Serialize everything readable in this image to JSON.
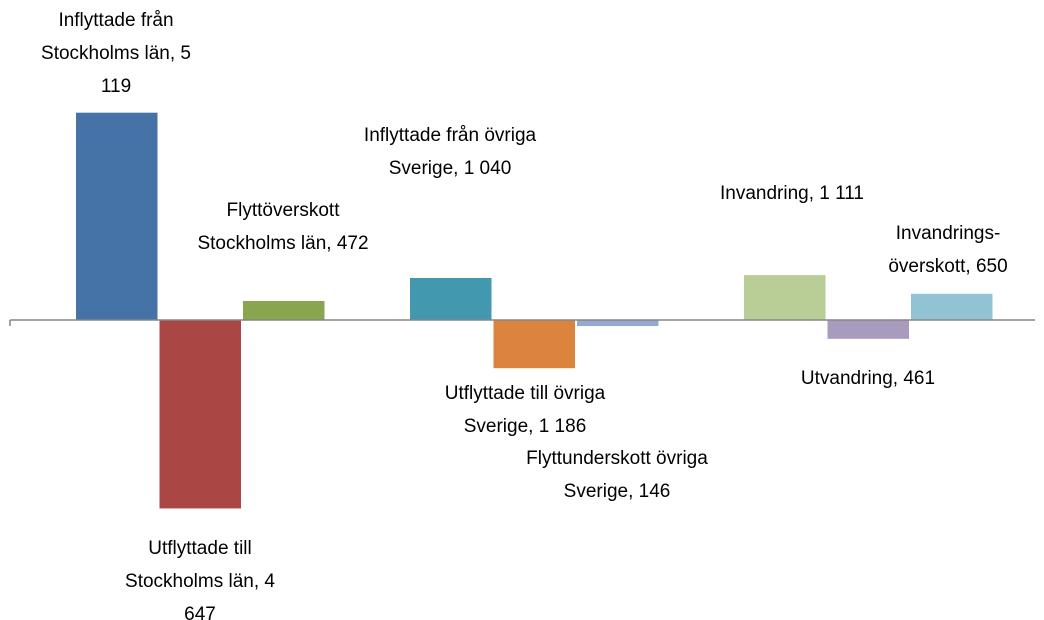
{
  "chart_data": {
    "type": "bar",
    "values": [
      5119,
      -4647,
      472,
      1040,
      -1186,
      -146,
      1111,
      -461,
      650
    ],
    "value_labels": [
      "Inflyttade från Stockholms län, 5 119",
      "Utflyttade till Stockholms län, 4 647",
      "Flyttöverskott Stockholms län, 472",
      "Inflyttade från övriga Sverige, 1 040",
      "Utflyttade till övriga Sverige, 1 186",
      "Flyttunderskott övriga Sverige, 146",
      "Invandring, 1 111",
      "Utvandring, 461",
      "Invandrings-överskott, 650"
    ],
    "colors": [
      "#4572a7",
      "#aa4643",
      "#89a54e",
      "#4198af",
      "#db843d",
      "#93a9cf",
      "#b9cd96",
      "#a99bbd",
      "#92c3d5"
    ],
    "ylim": [
      -7400,
      7900
    ]
  }
}
